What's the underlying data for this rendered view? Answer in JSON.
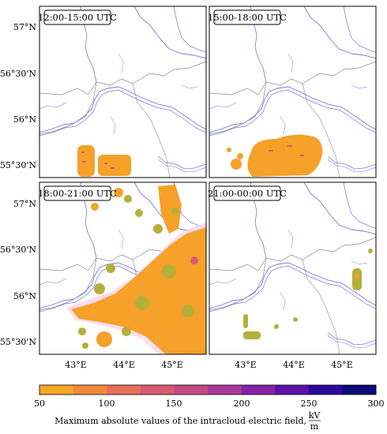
{
  "panels": [
    {
      "title": "12:00-15:00 UTC"
    },
    {
      "title": "15:00-18:00 UTC"
    },
    {
      "title": "18:00-21:00 UTC"
    },
    {
      "title": "21:00-00:00 UTC"
    }
  ],
  "lat_ticks_top": [
    "57°N",
    "56°30'N",
    "56°N",
    "55°30'N"
  ],
  "lat_ticks_bottom": [
    "57°N",
    "56°30'N",
    "56°N",
    "55°30'N"
  ],
  "lon_ticks": [
    "43°E",
    "44°E",
    "45°E",
    "43°E",
    "44°E",
    "45°E"
  ],
  "colorbar": {
    "ticks": [
      "50",
      "100",
      "150",
      "200",
      "250",
      "300"
    ],
    "label": "Maximum absolute values of the intracloud electric field,",
    "unit_num": "kV",
    "unit_den": "m",
    "colors": [
      "#f5a623",
      "#f08a3c",
      "#e8705a",
      "#d85a6e",
      "#c44a84",
      "#a83a98",
      "#8424a6",
      "#5a12a8",
      "#2a0a98",
      "#0d0a78"
    ]
  },
  "colors": {
    "river": "#7777dd",
    "boundary": "#777777",
    "storm_low": "#f5a12a",
    "storm_green": "#b5b03a",
    "halo": "#f6d6f0"
  }
}
